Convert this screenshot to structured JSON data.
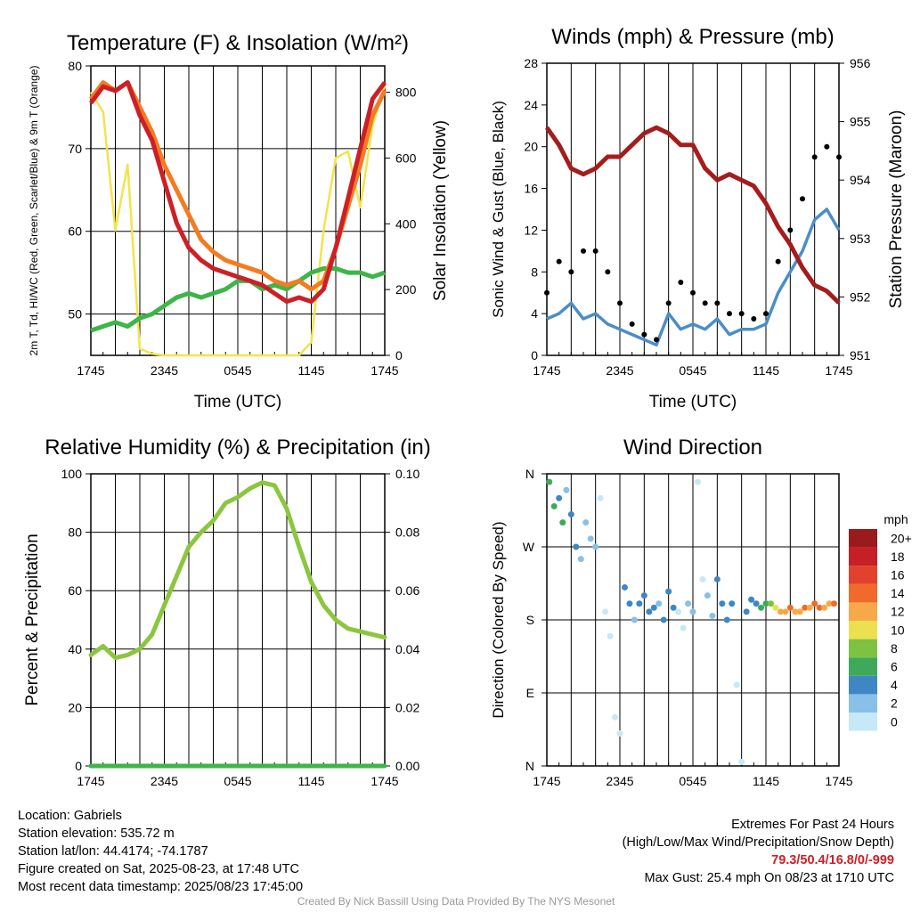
{
  "chart_data": [
    {
      "type": "line",
      "title": "Temperature (F) & Insolation (W/m²)",
      "xlabel": "Time (UTC)",
      "ylabel_left": "2m T, Td, HI/WC (Red, Green, Scarlet/Blue) & 9m T (Orange)",
      "ylabel_right": "Solar Insolation (Yellow)",
      "x_ticks": [
        "1745",
        "2345",
        "0545",
        "1145",
        "1745"
      ],
      "ylim_left": [
        45,
        80
      ],
      "yticks_left": [
        "50",
        "60",
        "70",
        "80"
      ],
      "ylim_right": [
        0,
        880
      ],
      "yticks_right": [
        "0",
        "200",
        "400",
        "600",
        "800"
      ],
      "grid": true,
      "x_hours": [
        0,
        1,
        2,
        3,
        4,
        5,
        6,
        7,
        8,
        9,
        10,
        11,
        12,
        13,
        14,
        15,
        16,
        17,
        18,
        19,
        20,
        21,
        22,
        23,
        24
      ],
      "series": [
        {
          "color": "#cc2027",
          "axis": "left",
          "values": [
            75.5,
            77.5,
            77,
            78,
            74,
            71,
            66,
            61,
            58,
            56.5,
            55.5,
            55,
            54.5,
            54,
            53.5,
            52.5,
            51.5,
            52,
            51.5,
            53,
            58,
            64,
            70,
            76,
            78
          ]
        },
        {
          "color": "#f47b20",
          "axis": "left",
          "values": [
            76,
            78,
            77,
            78,
            75,
            72,
            68,
            65,
            62,
            59,
            57.5,
            56.5,
            56,
            55.5,
            55,
            54,
            53.5,
            54,
            53,
            54,
            58,
            63,
            68,
            74,
            77
          ]
        },
        {
          "color": "#3eb549",
          "axis": "left",
          "values": [
            48,
            48.5,
            49,
            48.5,
            49.5,
            50,
            51,
            52,
            52.5,
            52,
            52.5,
            53,
            54,
            54,
            53,
            53.5,
            53,
            54,
            55,
            55.5,
            55.5,
            55,
            55,
            54.5,
            55
          ]
        },
        {
          "color": "#f3e44a",
          "axis": "right",
          "values": [
            800,
            740,
            380,
            580,
            20,
            5,
            0,
            0,
            0,
            0,
            0,
            0,
            0,
            0,
            0,
            0,
            0,
            0,
            40,
            380,
            600,
            620,
            450,
            700,
            820
          ]
        }
      ]
    },
    {
      "type": "line",
      "title": "Winds (mph) & Pressure (mb)",
      "xlabel": "Time (UTC)",
      "ylabel_left": "Sonic Wind & Gust (Blue, Black)",
      "ylabel_right": "Station Pressure (Maroon)",
      "x_ticks": [
        "1745",
        "2345",
        "0545",
        "1145",
        "1745"
      ],
      "ylim_left": [
        0,
        28
      ],
      "yticks_left": [
        "0",
        "4",
        "8",
        "12",
        "16",
        "20",
        "24",
        "28"
      ],
      "ylim_right": [
        951,
        956
      ],
      "yticks_right": [
        "951",
        "952",
        "953",
        "954",
        "955",
        "956"
      ],
      "grid": true,
      "x_hours": [
        0,
        1,
        2,
        3,
        4,
        5,
        6,
        7,
        8,
        9,
        10,
        11,
        12,
        13,
        14,
        15,
        16,
        17,
        18,
        19,
        20,
        21,
        22,
        23,
        24
      ],
      "series": [
        {
          "name": "",
          "color": "#4a8ec8",
          "axis": "left",
          "values": [
            3.5,
            4,
            5,
            3.5,
            4,
            3,
            2.5,
            2,
            1.5,
            1,
            4,
            2.5,
            3,
            2.5,
            3.5,
            2,
            2.5,
            2.5,
            3,
            6,
            8,
            10,
            13,
            14,
            12
          ]
        },
        {
          "color": "#000000",
          "axis": "left",
          "values": [
            6,
            9,
            8,
            10,
            10,
            8,
            5,
            3,
            2,
            1.5,
            5,
            7,
            6,
            5,
            5,
            4,
            4,
            3.5,
            4,
            9,
            12,
            15,
            19,
            20,
            19
          ]
        },
        {
          "color": "#a51c1c",
          "axis": "right",
          "values": [
            954.9,
            954.6,
            954.2,
            954.1,
            954.2,
            954.4,
            954.4,
            954.6,
            954.8,
            954.9,
            954.8,
            954.6,
            954.6,
            954.2,
            954.0,
            954.1,
            954.0,
            953.9,
            953.6,
            953.2,
            952.9,
            952.5,
            952.2,
            952.1,
            951.9
          ]
        }
      ]
    },
    {
      "type": "line",
      "title": "Relative Humidity (%) & Precipitation (in)",
      "ylabel_left": "Percent & Precipitation",
      "x_ticks": [
        "1745",
        "2345",
        "0545",
        "1145",
        "1745"
      ],
      "ylim_left": [
        0,
        100
      ],
      "yticks_left": [
        "0",
        "20",
        "40",
        "60",
        "80",
        "100"
      ],
      "ylim_right": [
        0,
        0.1
      ],
      "yticks_right": [
        "0.00",
        "0.02",
        "0.04",
        "0.06",
        "0.08",
        "0.10"
      ],
      "grid": true,
      "x_hours": [
        0,
        1,
        2,
        3,
        4,
        5,
        6,
        7,
        8,
        9,
        10,
        11,
        12,
        13,
        14,
        15,
        16,
        17,
        18,
        19,
        20,
        21,
        22,
        23,
        24
      ],
      "series": [
        {
          "color": "#8cc63f",
          "axis": "left",
          "values": [
            38,
            41,
            37,
            38,
            40,
            45,
            55,
            65,
            75,
            80,
            84,
            90,
            92,
            95,
            97,
            96,
            88,
            75,
            63,
            55,
            50,
            47,
            46,
            45,
            44
          ]
        },
        {
          "color": "#3eb549",
          "axis": "right",
          "values": [
            0,
            0,
            0,
            0,
            0,
            0,
            0,
            0,
            0,
            0,
            0,
            0,
            0,
            0,
            0,
            0,
            0,
            0,
            0,
            0,
            0,
            0,
            0,
            0,
            0
          ]
        }
      ]
    },
    {
      "type": "scatter",
      "title": "Wind Direction",
      "ylabel_left": "Direction (Colored By Speed)",
      "x_ticks": [
        "1745",
        "2345",
        "0545",
        "1145",
        "1745"
      ],
      "y_ticks": [
        "N",
        "E",
        "S",
        "W",
        "N"
      ],
      "ylim_left": [
        0,
        360
      ],
      "grid": true,
      "colorbar": {
        "title": "mph",
        "labels": [
          "0",
          "2",
          "4",
          "6",
          "8",
          "10",
          "12",
          "14",
          "16",
          "18",
          "20+"
        ],
        "colors": [
          "#c6e8f7",
          "#89c0e8",
          "#3f87c4",
          "#3eaa59",
          "#7dc242",
          "#ebe04e",
          "#f7a94a",
          "#f06a2b",
          "#e2412b",
          "#c61f25",
          "#9b1b1b"
        ]
      },
      "points_hours": [
        0.2,
        0.6,
        1.0,
        1.3,
        1.6,
        2.0,
        2.4,
        2.8,
        3.2,
        3.6,
        4.0,
        4.4,
        4.8,
        5.2,
        5.6,
        6.0,
        6.4,
        6.8,
        7.2,
        7.6,
        8.0,
        8.4,
        8.8,
        9.2,
        9.6,
        10.0,
        10.4,
        10.8,
        11.2,
        11.6,
        12.0,
        12.4,
        12.8,
        13.2,
        13.6,
        14.0,
        14.4,
        14.8,
        15.2,
        15.6,
        16.0,
        16.4,
        16.8,
        17.2,
        17.6,
        18.0,
        18.4,
        18.8,
        19.2,
        19.6,
        20.0,
        20.4,
        20.8,
        21.2,
        21.6,
        22.0,
        22.4,
        22.8,
        23.2,
        23.6
      ],
      "points_dir": [
        350,
        320,
        330,
        300,
        340,
        310,
        270,
        255,
        300,
        280,
        270,
        330,
        190,
        160,
        60,
        40,
        220,
        200,
        180,
        200,
        210,
        190,
        195,
        200,
        180,
        215,
        195,
        190,
        170,
        200,
        190,
        350,
        230,
        210,
        185,
        230,
        200,
        180,
        200,
        100,
        5,
        190,
        205,
        200,
        195,
        200,
        200,
        195,
        190,
        190,
        195,
        190,
        190,
        195,
        195,
        200,
        195,
        195,
        200,
        200
      ],
      "points_speed": [
        6,
        7,
        4,
        7,
        3,
        5,
        4,
        2,
        3,
        2,
        2,
        1,
        1,
        1,
        1,
        1,
        4,
        4,
        3,
        4,
        4,
        5,
        4,
        3,
        4,
        4,
        4,
        1,
        1,
        3,
        3,
        1,
        1,
        2,
        3,
        4,
        4,
        4,
        4,
        1,
        1,
        4,
        5,
        4,
        6,
        6,
        9,
        11,
        12,
        13,
        14,
        13,
        12,
        14,
        13,
        15,
        14,
        13,
        12,
        14
      ]
    }
  ],
  "info": {
    "location": "Location: Gabriels",
    "elevation": "Station elevation: 535.72 m",
    "latlon": "Station lat/lon: 44.4174; -74.1787",
    "created": "Figure created on Sat, 2025-08-23, at 17:48 UTC",
    "recent": "Most recent data timestamp: 2025/08/23 17:45:00"
  },
  "extremes": {
    "title": "Extremes For Past 24 Hours",
    "subtitle": "(High/Low/Max Wind/Precipitation/Snow Depth)",
    "values": "79.3/50.4/16.8/0/-999",
    "gust": "Max Gust: 25.4 mph On 08/23 at 1710 UTC"
  },
  "credit": "Created By Nick Bassill Using Data Provided By The NYS Mesonet"
}
